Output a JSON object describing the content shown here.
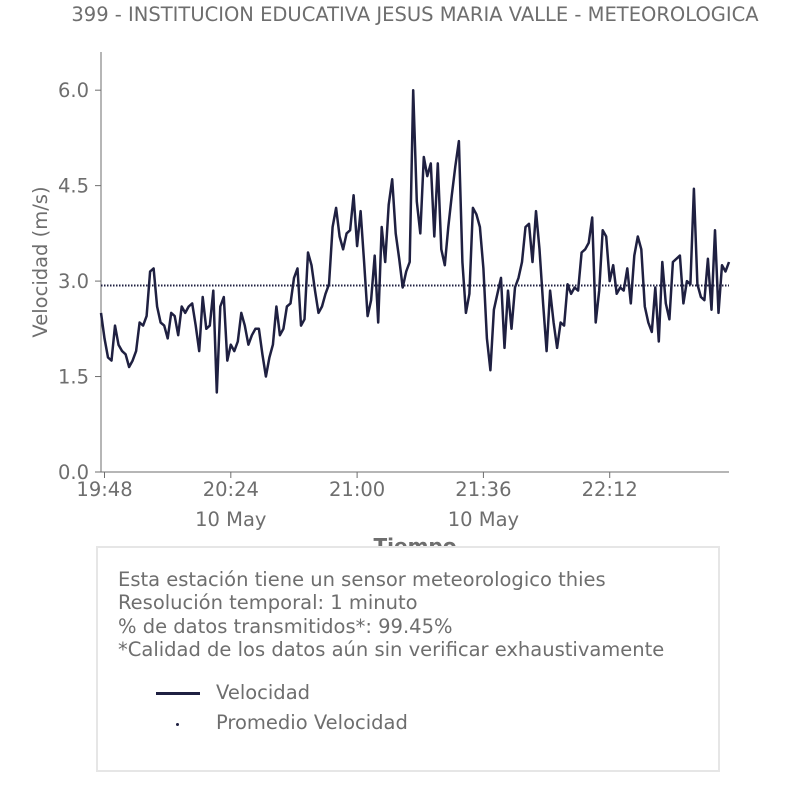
{
  "chart_data": {
    "type": "line",
    "title": "399 - INSTITUCION EDUCATIVA JESUS MARIA VALLE - METEOROLOGICA",
    "xlabel": "Tiempo",
    "ylabel": "Velocidad (m/s)",
    "ylim": [
      0,
      6.6
    ],
    "xlim": [
      "19:47",
      "22:46"
    ],
    "x_ticks": [
      {
        "time": "19:48",
        "label": "19:48",
        "sublabel": ""
      },
      {
        "time": "20:24",
        "label": "20:24",
        "sublabel": "10 May"
      },
      {
        "time": "21:00",
        "label": "21:00",
        "sublabel": ""
      },
      {
        "time": "21:36",
        "label": "21:36",
        "sublabel": "10 May"
      },
      {
        "time": "22:12",
        "label": "22:12",
        "sublabel": ""
      }
    ],
    "y_ticks": [
      0.0,
      1.5,
      3.0,
      4.5,
      6.0
    ],
    "y_tick_labels": [
      "0.0",
      "1.5",
      "3.0",
      "4.5",
      "6.0"
    ],
    "grid": false,
    "series": [
      {
        "name": "Velocidad",
        "style": "solid",
        "color": "#1f2041",
        "x": [
          "19:47",
          "19:48",
          "19:49",
          "19:50",
          "19:51",
          "19:52",
          "19:53",
          "19:54",
          "19:55",
          "19:56",
          "19:57",
          "19:58",
          "19:59",
          "20:00",
          "20:01",
          "20:02",
          "20:03",
          "20:04",
          "20:05",
          "20:06",
          "20:07",
          "20:08",
          "20:09",
          "20:10",
          "20:11",
          "20:12",
          "20:13",
          "20:14",
          "20:15",
          "20:16",
          "20:17",
          "20:18",
          "20:19",
          "20:20",
          "20:21",
          "20:22",
          "20:23",
          "20:24",
          "20:25",
          "20:26",
          "20:27",
          "20:28",
          "20:29",
          "20:30",
          "20:31",
          "20:32",
          "20:33",
          "20:34",
          "20:35",
          "20:36",
          "20:37",
          "20:38",
          "20:39",
          "20:40",
          "20:41",
          "20:42",
          "20:43",
          "20:44",
          "20:45",
          "20:46",
          "20:47",
          "20:48",
          "20:49",
          "20:50",
          "20:51",
          "20:52",
          "20:53",
          "20:54",
          "20:55",
          "20:56",
          "20:57",
          "20:58",
          "20:59",
          "21:00",
          "21:01",
          "21:02",
          "21:03",
          "21:04",
          "21:05",
          "21:06",
          "21:07",
          "21:08",
          "21:09",
          "21:10",
          "21:11",
          "21:12",
          "21:13",
          "21:14",
          "21:15",
          "21:16",
          "21:17",
          "21:18",
          "21:19",
          "21:20",
          "21:21",
          "21:22",
          "21:23",
          "21:24",
          "21:25",
          "21:26",
          "21:27",
          "21:28",
          "21:29",
          "21:30",
          "21:31",
          "21:32",
          "21:33",
          "21:34",
          "21:35",
          "21:36",
          "21:37",
          "21:38",
          "21:39",
          "21:40",
          "21:41",
          "21:42",
          "21:43",
          "21:44",
          "21:45",
          "21:46",
          "21:47",
          "21:48",
          "21:49",
          "21:50",
          "21:51",
          "21:52",
          "21:53",
          "21:54",
          "21:55",
          "21:56",
          "21:57",
          "21:58",
          "21:59",
          "22:00",
          "22:01",
          "22:02",
          "22:03",
          "22:04",
          "22:05",
          "22:06",
          "22:07",
          "22:08",
          "22:09",
          "22:10",
          "22:11",
          "22:12",
          "22:13",
          "22:14",
          "22:15",
          "22:16",
          "22:17",
          "22:18",
          "22:19",
          "22:20",
          "22:21",
          "22:22",
          "22:23",
          "22:24",
          "22:25",
          "22:26",
          "22:27",
          "22:28",
          "22:29",
          "22:30",
          "22:31",
          "22:32",
          "22:33",
          "22:34",
          "22:35",
          "22:36",
          "22:37",
          "22:38",
          "22:39",
          "22:40",
          "22:41",
          "22:42",
          "22:43",
          "22:44",
          "22:45",
          "22:46"
        ],
        "y": [
          2.5,
          2.1,
          1.8,
          1.75,
          2.3,
          2.0,
          1.9,
          1.85,
          1.65,
          1.75,
          1.9,
          2.35,
          2.3,
          2.45,
          3.15,
          3.2,
          2.6,
          2.35,
          2.3,
          2.1,
          2.5,
          2.45,
          2.15,
          2.6,
          2.5,
          2.6,
          2.65,
          2.3,
          1.9,
          2.75,
          2.25,
          2.3,
          2.85,
          1.25,
          2.6,
          2.75,
          1.75,
          2.0,
          1.9,
          2.05,
          2.5,
          2.3,
          2.0,
          2.15,
          2.25,
          2.25,
          1.85,
          1.5,
          1.8,
          2.0,
          2.6,
          2.15,
          2.25,
          2.6,
          2.65,
          3.05,
          3.2,
          2.3,
          2.4,
          3.45,
          3.25,
          2.85,
          2.5,
          2.6,
          2.8,
          2.95,
          3.85,
          4.15,
          3.7,
          3.5,
          3.75,
          3.8,
          4.35,
          3.55,
          4.1,
          3.3,
          2.45,
          2.7,
          3.4,
          2.35,
          3.85,
          3.3,
          4.2,
          4.6,
          3.75,
          3.35,
          2.9,
          3.15,
          3.3,
          6.0,
          4.25,
          3.75,
          4.95,
          4.65,
          4.85,
          3.7,
          4.85,
          3.5,
          3.25,
          3.85,
          4.35,
          4.8,
          5.2,
          3.3,
          2.5,
          2.8,
          4.15,
          4.05,
          3.85,
          3.2,
          2.1,
          1.6,
          2.55,
          2.8,
          3.05,
          1.95,
          2.85,
          2.25,
          2.9,
          3.05,
          3.3,
          3.85,
          3.9,
          3.3,
          4.1,
          3.5,
          2.65,
          1.9,
          2.85,
          2.35,
          1.95,
          2.35,
          2.3,
          2.95,
          2.8,
          2.9,
          2.85,
          3.45,
          3.5,
          3.6,
          4.0,
          2.35,
          2.85,
          3.8,
          3.7,
          3.0,
          3.25,
          2.8,
          2.9,
          2.85,
          3.2,
          2.65,
          3.4,
          3.7,
          3.5,
          2.6,
          2.35,
          2.2,
          2.9,
          2.05,
          3.3,
          2.65,
          2.4,
          3.3,
          3.35,
          3.4,
          2.65,
          3.0,
          2.95,
          4.45,
          2.95,
          2.75,
          2.7,
          3.35,
          2.55,
          3.8,
          2.5,
          3.25,
          3.15,
          3.3
        ]
      },
      {
        "name": "Promedio Velocidad",
        "style": "dotted",
        "color": "#1f2041",
        "value": 2.93
      }
    ],
    "legend": [
      "Velocidad",
      "Promedio Velocidad"
    ],
    "legend_placement": "below"
  },
  "info": {
    "lines": [
      "Esta estación tiene un sensor meteorologico thies",
      "Resolución temporal: 1 minuto",
      "% de datos transmitidos*: 99.45%",
      "*Calidad de los datos aún sin verificar exhaustivamente"
    ]
  },
  "colors": {
    "line": "#1f2041",
    "text": "#6e6e6e",
    "axis": "#6e6e6e",
    "box_border": "#e6e6e6"
  }
}
